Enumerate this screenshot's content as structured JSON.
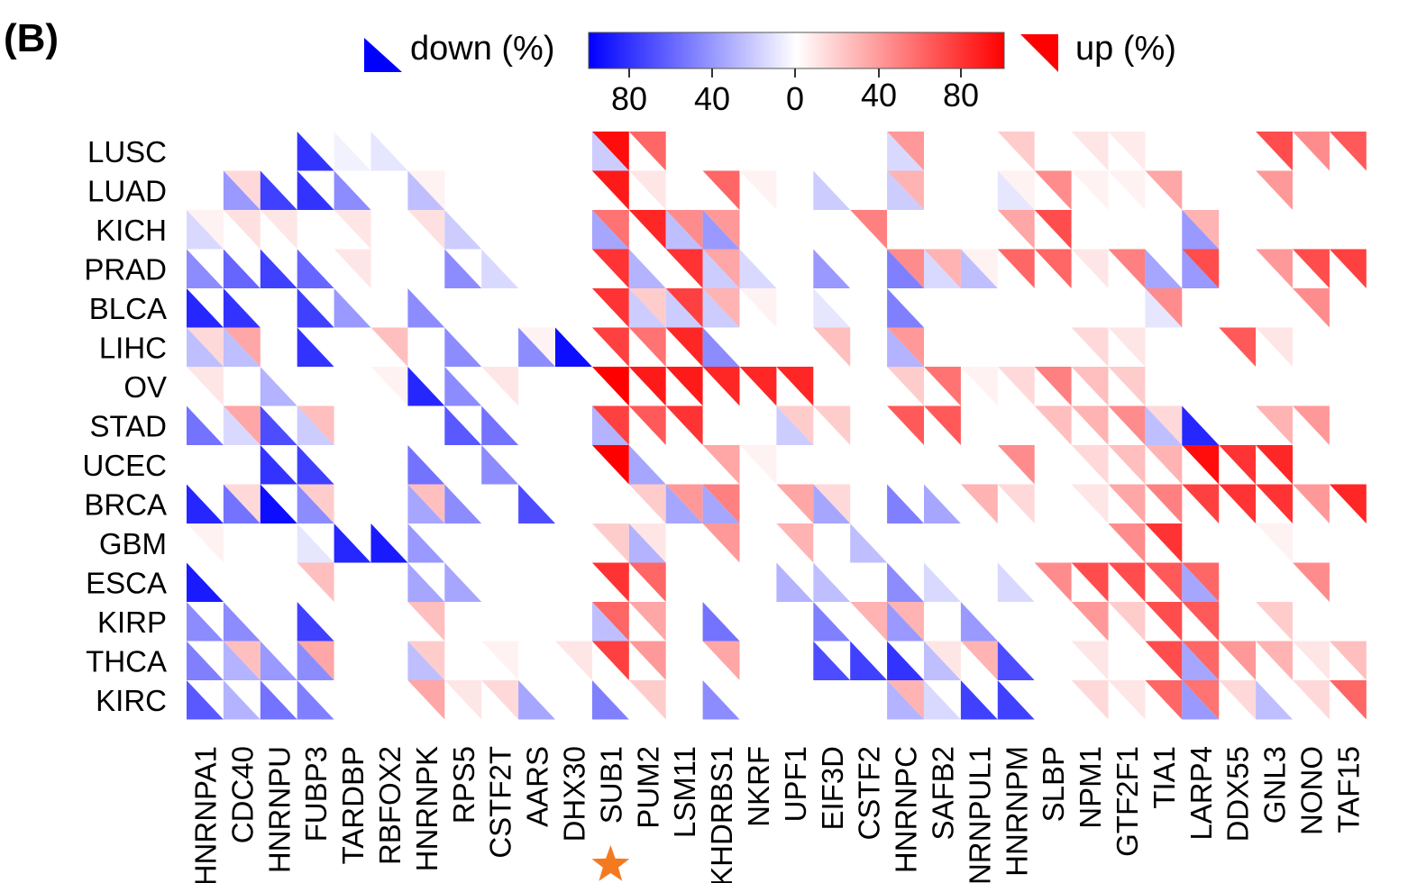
{
  "panel_label": "(B)",
  "chart_data": {
    "type": "heatmap",
    "subtype": "split-triangle heatmap (upper-right triangle = up %, lower-left triangle = down %)",
    "legend": {
      "down_label": "down (%)",
      "up_label": "up (%)",
      "down_ticks": [
        "80",
        "40"
      ],
      "zero_tick": "0",
      "up_ticks": [
        "40",
        "80"
      ],
      "scale_max": 100,
      "down_color": "#0000ff",
      "up_color": "#ff0000",
      "neutral_color": "#ffffff"
    },
    "rows": [
      "LUSC",
      "LUAD",
      "KICH",
      "PRAD",
      "BLCA",
      "LIHC",
      "OV",
      "STAD",
      "UCEC",
      "BRCA",
      "GBM",
      "ESCA",
      "KIRP",
      "THCA",
      "KIRC"
    ],
    "columns": [
      "HNRNPA1",
      "CDC40",
      "HNRNPU",
      "FUBP3",
      "TARDBP",
      "RBFOX2",
      "HNRNPK",
      "RPS5",
      "CSTF2T",
      "AARS",
      "DHX30",
      "SUB1",
      "PUM2",
      "LSM11",
      "KHDRBS1",
      "NKRF",
      "UPF1",
      "EIF3D",
      "CSTF2",
      "HNRNPC",
      "SAFB2",
      "HNRNPUL1",
      "HNRNPM",
      "SLBP",
      "NPM1",
      "GTF2F1",
      "TIA1",
      "LARP4",
      "DDX55",
      "GNL3",
      "NONO",
      "TAF15"
    ],
    "highlight_column": "SUB1",
    "highlight_marker": "star",
    "highlight_color": "#f47a20",
    "up_pct": [
      [
        0,
        0,
        0,
        0,
        0,
        0,
        0,
        0,
        0,
        0,
        0,
        95,
        60,
        0,
        0,
        0,
        0,
        0,
        0,
        40,
        0,
        0,
        20,
        0,
        10,
        8,
        0,
        0,
        0,
        70,
        45,
        65
      ],
      [
        0,
        15,
        0,
        0,
        0,
        0,
        5,
        0,
        0,
        0,
        0,
        90,
        10,
        0,
        60,
        5,
        0,
        0,
        0,
        30,
        0,
        0,
        5,
        45,
        5,
        5,
        35,
        0,
        0,
        40,
        0,
        0
      ],
      [
        5,
        12,
        10,
        0,
        10,
        0,
        12,
        0,
        0,
        0,
        0,
        55,
        85,
        45,
        40,
        0,
        0,
        0,
        50,
        0,
        0,
        0,
        35,
        70,
        0,
        0,
        0,
        30,
        0,
        0,
        0,
        0
      ],
      [
        0,
        0,
        0,
        0,
        10,
        0,
        0,
        0,
        0,
        0,
        0,
        80,
        0,
        80,
        35,
        0,
        0,
        0,
        0,
        45,
        30,
        5,
        60,
        60,
        10,
        50,
        0,
        70,
        0,
        40,
        70,
        75
      ],
      [
        0,
        0,
        0,
        0,
        0,
        0,
        0,
        0,
        0,
        0,
        0,
        80,
        20,
        75,
        30,
        5,
        0,
        0,
        0,
        0,
        0,
        0,
        0,
        0,
        0,
        0,
        45,
        0,
        0,
        0,
        45,
        0
      ],
      [
        15,
        35,
        0,
        0,
        0,
        25,
        0,
        0,
        0,
        5,
        0,
        75,
        55,
        85,
        0,
        0,
        0,
        25,
        0,
        40,
        0,
        0,
        0,
        0,
        15,
        10,
        0,
        0,
        65,
        10,
        0,
        0
      ],
      [
        10,
        0,
        0,
        0,
        0,
        5,
        0,
        0,
        10,
        0,
        0,
        100,
        90,
        90,
        85,
        85,
        85,
        0,
        0,
        20,
        55,
        5,
        15,
        50,
        25,
        20,
        0,
        0,
        0,
        0,
        0,
        0
      ],
      [
        0,
        35,
        0,
        25,
        0,
        0,
        0,
        0,
        0,
        0,
        0,
        75,
        65,
        80,
        0,
        0,
        20,
        20,
        0,
        65,
        65,
        0,
        0,
        25,
        30,
        45,
        15,
        0,
        0,
        30,
        40,
        0
      ],
      [
        0,
        0,
        0,
        0,
        0,
        0,
        0,
        0,
        0,
        0,
        0,
        100,
        0,
        0,
        35,
        5,
        0,
        0,
        0,
        0,
        0,
        0,
        45,
        0,
        15,
        25,
        30,
        95,
        80,
        85,
        0,
        0
      ],
      [
        0,
        15,
        0,
        20,
        0,
        0,
        25,
        0,
        0,
        0,
        0,
        0,
        20,
        40,
        50,
        0,
        35,
        15,
        0,
        0,
        0,
        30,
        15,
        0,
        10,
        35,
        50,
        75,
        80,
        80,
        40,
        85
      ],
      [
        5,
        0,
        0,
        0,
        0,
        0,
        0,
        0,
        0,
        0,
        0,
        20,
        10,
        0,
        40,
        0,
        30,
        0,
        0,
        0,
        0,
        0,
        0,
        0,
        0,
        45,
        80,
        0,
        0,
        5,
        0,
        0
      ],
      [
        0,
        0,
        0,
        25,
        0,
        0,
        0,
        0,
        0,
        0,
        0,
        80,
        60,
        0,
        0,
        0,
        0,
        0,
        0,
        0,
        0,
        0,
        0,
        45,
        70,
        70,
        65,
        60,
        0,
        0,
        45,
        0
      ],
      [
        0,
        0,
        0,
        0,
        0,
        0,
        25,
        0,
        0,
        0,
        0,
        60,
        35,
        0,
        0,
        0,
        0,
        0,
        30,
        30,
        0,
        0,
        0,
        0,
        40,
        20,
        70,
        65,
        0,
        20,
        0,
        0
      ],
      [
        0,
        25,
        0,
        35,
        0,
        0,
        20,
        0,
        5,
        0,
        10,
        75,
        40,
        0,
        35,
        0,
        0,
        0,
        0,
        0,
        10,
        30,
        0,
        0,
        10,
        0,
        70,
        60,
        40,
        30,
        10,
        25
      ],
      [
        0,
        0,
        0,
        0,
        0,
        0,
        35,
        10,
        15,
        0,
        0,
        0,
        20,
        0,
        0,
        0,
        0,
        0,
        0,
        30,
        0,
        0,
        0,
        0,
        15,
        10,
        60,
        55,
        15,
        0,
        15,
        60
      ]
    ],
    "down_pct": [
      [
        0,
        0,
        0,
        80,
        5,
        10,
        0,
        0,
        0,
        0,
        0,
        20,
        0,
        0,
        0,
        0,
        0,
        0,
        0,
        15,
        0,
        0,
        0,
        0,
        0,
        0,
        0,
        0,
        0,
        0,
        0,
        0
      ],
      [
        0,
        40,
        75,
        80,
        45,
        0,
        25,
        0,
        0,
        0,
        0,
        0,
        0,
        0,
        0,
        0,
        0,
        20,
        0,
        20,
        0,
        0,
        10,
        0,
        0,
        0,
        0,
        0,
        0,
        0,
        0,
        0
      ],
      [
        15,
        0,
        0,
        0,
        0,
        0,
        0,
        20,
        0,
        0,
        0,
        35,
        0,
        25,
        40,
        0,
        0,
        0,
        0,
        0,
        0,
        0,
        0,
        0,
        0,
        0,
        0,
        40,
        0,
        0,
        0,
        0
      ],
      [
        45,
        60,
        75,
        60,
        0,
        0,
        0,
        45,
        15,
        0,
        0,
        0,
        30,
        0,
        20,
        15,
        0,
        40,
        0,
        50,
        15,
        25,
        0,
        0,
        0,
        0,
        35,
        40,
        0,
        0,
        0,
        0
      ],
      [
        85,
        80,
        0,
        75,
        40,
        0,
        45,
        0,
        0,
        0,
        0,
        0,
        20,
        20,
        20,
        0,
        0,
        10,
        0,
        50,
        0,
        0,
        0,
        0,
        0,
        0,
        10,
        0,
        0,
        0,
        0,
        0
      ],
      [
        25,
        25,
        0,
        80,
        0,
        0,
        0,
        45,
        0,
        45,
        95,
        0,
        0,
        0,
        45,
        0,
        0,
        0,
        0,
        30,
        0,
        0,
        0,
        0,
        0,
        0,
        0,
        0,
        0,
        0,
        0,
        0
      ],
      [
        0,
        0,
        30,
        0,
        0,
        0,
        85,
        45,
        0,
        0,
        0,
        0,
        0,
        0,
        0,
        0,
        0,
        0,
        0,
        0,
        0,
        0,
        0,
        0,
        0,
        0,
        0,
        0,
        0,
        0,
        0,
        0
      ],
      [
        55,
        15,
        70,
        20,
        0,
        0,
        0,
        65,
        55,
        0,
        0,
        30,
        0,
        0,
        0,
        0,
        20,
        0,
        0,
        0,
        0,
        0,
        0,
        0,
        0,
        0,
        25,
        85,
        0,
        0,
        0,
        0
      ],
      [
        0,
        0,
        80,
        75,
        0,
        0,
        55,
        0,
        45,
        0,
        0,
        0,
        35,
        0,
        0,
        0,
        0,
        0,
        0,
        0,
        0,
        0,
        0,
        0,
        0,
        0,
        0,
        0,
        0,
        0,
        0,
        0
      ],
      [
        85,
        55,
        95,
        45,
        0,
        0,
        35,
        45,
        0,
        70,
        0,
        0,
        0,
        35,
        35,
        0,
        0,
        35,
        0,
        50,
        35,
        0,
        0,
        0,
        0,
        0,
        0,
        0,
        0,
        0,
        0,
        0
      ],
      [
        0,
        0,
        0,
        10,
        85,
        90,
        40,
        0,
        0,
        0,
        0,
        0,
        30,
        0,
        0,
        0,
        0,
        0,
        25,
        0,
        0,
        0,
        0,
        0,
        0,
        0,
        0,
        0,
        0,
        0,
        0,
        0
      ],
      [
        90,
        0,
        0,
        0,
        0,
        0,
        35,
        35,
        0,
        0,
        0,
        0,
        0,
        0,
        0,
        0,
        30,
        25,
        0,
        45,
        15,
        0,
        15,
        0,
        0,
        0,
        0,
        35,
        0,
        0,
        0,
        0
      ],
      [
        45,
        45,
        0,
        75,
        0,
        0,
        0,
        0,
        0,
        0,
        0,
        25,
        0,
        0,
        55,
        0,
        0,
        50,
        0,
        40,
        0,
        40,
        0,
        0,
        0,
        0,
        0,
        0,
        0,
        0,
        0,
        0
      ],
      [
        50,
        30,
        40,
        45,
        0,
        0,
        25,
        0,
        0,
        0,
        0,
        0,
        0,
        0,
        0,
        0,
        0,
        70,
        75,
        80,
        25,
        0,
        70,
        0,
        0,
        0,
        0,
        35,
        0,
        0,
        0,
        0
      ],
      [
        65,
        30,
        55,
        50,
        0,
        0,
        0,
        0,
        0,
        35,
        0,
        50,
        0,
        0,
        45,
        0,
        0,
        0,
        0,
        30,
        15,
        75,
        75,
        0,
        0,
        0,
        0,
        40,
        0,
        25,
        0,
        0
      ]
    ]
  }
}
